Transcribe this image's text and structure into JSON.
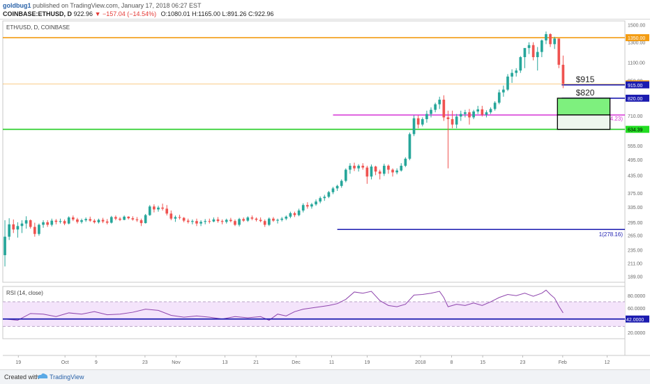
{
  "header": {
    "author": "goldbug1",
    "published_text": "published on TradingView.com, January 17, 2018 06:27 EST",
    "symbol": "COINBASE:ETHUSD, D",
    "last": "922.96",
    "change": "−157.04 (−14.54%)",
    "ohlc": "O:1080.01 H:1165.00 L:891.26 C:922.96"
  },
  "colors": {
    "up": "#26a69a",
    "down": "#ef5350",
    "orange": "#f39c12",
    "blue": "#1b1bb0",
    "magenta": "#d633d6",
    "green": "#22cc22",
    "rsi_line": "#8e44ad",
    "rsi_band": "#f4e4fb"
  },
  "chart_data": [
    {
      "type": "candlestick",
      "title": "ETH/USD, D, COINBASE",
      "x_ticks": [
        "19",
        "Oct",
        "9",
        "23",
        "Nov",
        "13",
        "21",
        "Dec",
        "11",
        "19",
        "2018",
        "8",
        "15",
        "23",
        "Feb",
        "12"
      ],
      "y_ticks": [
        189,
        211,
        235,
        265,
        295,
        335,
        375,
        435,
        495,
        555,
        630,
        710,
        820,
        950,
        1100,
        1300,
        1500
      ],
      "y_scale": "log",
      "ylim": [
        180,
        1550
      ],
      "days": 146,
      "candles": [
        [
          0,
          225,
          300,
          205,
          262
        ],
        [
          1,
          262,
          305,
          255,
          290
        ],
        [
          2,
          290,
          302,
          270,
          278
        ],
        [
          3,
          278,
          295,
          260,
          286
        ],
        [
          4,
          286,
          300,
          270,
          292
        ],
        [
          5,
          292,
          310,
          280,
          300
        ],
        [
          6,
          300,
          302,
          280,
          284
        ],
        [
          7,
          284,
          294,
          262,
          268
        ],
        [
          8,
          268,
          292,
          264,
          289
        ],
        [
          9,
          289,
          300,
          282,
          295
        ],
        [
          10,
          295,
          300,
          284,
          289
        ],
        [
          11,
          289,
          304,
          285,
          299
        ],
        [
          12,
          299,
          303,
          290,
          296
        ],
        [
          13,
          296,
          304,
          292,
          298
        ],
        [
          14,
          298,
          302,
          288,
          292
        ],
        [
          15,
          292,
          310,
          290,
          307
        ],
        [
          16,
          307,
          312,
          298,
          302
        ],
        [
          17,
          302,
          306,
          292,
          296
        ],
        [
          18,
          296,
          304,
          292,
          300
        ],
        [
          19,
          300,
          307,
          296,
          303
        ],
        [
          20,
          303,
          309,
          296,
          299
        ],
        [
          21,
          299,
          303,
          292,
          295
        ],
        [
          22,
          295,
          304,
          292,
          301
        ],
        [
          23,
          301,
          306,
          293,
          297
        ],
        [
          24,
          297,
          303,
          290,
          294
        ],
        [
          25,
          294,
          311,
          292,
          308
        ],
        [
          26,
          308,
          312,
          300,
          304
        ],
        [
          27,
          304,
          308,
          298,
          301
        ],
        [
          28,
          301,
          312,
          300,
          309
        ],
        [
          29,
          309,
          310,
          302,
          305
        ],
        [
          30,
          305,
          310,
          299,
          302
        ],
        [
          31,
          302,
          308,
          296,
          300
        ],
        [
          32,
          300,
          304,
          286,
          293
        ],
        [
          33,
          293,
          316,
          292,
          313
        ],
        [
          34,
          313,
          340,
          311,
          336
        ],
        [
          35,
          336,
          342,
          320,
          328
        ],
        [
          36,
          328,
          338,
          322,
          333
        ],
        [
          37,
          333,
          344,
          325,
          330
        ],
        [
          38,
          330,
          340,
          312,
          317
        ],
        [
          39,
          317,
          325,
          300,
          304
        ],
        [
          40,
          304,
          312,
          296,
          308
        ],
        [
          41,
          308,
          314,
          302,
          306
        ],
        [
          42,
          306,
          308,
          295,
          299
        ],
        [
          43,
          299,
          304,
          292,
          296
        ],
        [
          44,
          296,
          302,
          290,
          298
        ],
        [
          45,
          298,
          304,
          286,
          292
        ],
        [
          46,
          292,
          300,
          286,
          296
        ],
        [
          47,
          296,
          303,
          290,
          298
        ],
        [
          48,
          298,
          304,
          292,
          297
        ],
        [
          49,
          297,
          307,
          295,
          302
        ],
        [
          50,
          302,
          308,
          294,
          298
        ],
        [
          51,
          298,
          302,
          290,
          296
        ],
        [
          52,
          296,
          304,
          292,
          301
        ],
        [
          53,
          301,
          306,
          295,
          298
        ],
        [
          54,
          298,
          302,
          286,
          289
        ],
        [
          55,
          289,
          306,
          285,
          303
        ],
        [
          56,
          303,
          307,
          296,
          299
        ],
        [
          57,
          299,
          310,
          296,
          307
        ],
        [
          58,
          307,
          312,
          300,
          304
        ],
        [
          59,
          304,
          307,
          297,
          301
        ],
        [
          60,
          301,
          307,
          295,
          298
        ],
        [
          61,
          298,
          302,
          284,
          289
        ],
        [
          62,
          289,
          307,
          286,
          304
        ],
        [
          63,
          304,
          308,
          296,
          299
        ],
        [
          64,
          299,
          304,
          292,
          301
        ],
        [
          65,
          301,
          308,
          297,
          304
        ],
        [
          66,
          304,
          312,
          300,
          309
        ],
        [
          67,
          309,
          322,
          305,
          318
        ],
        [
          68,
          318,
          322,
          308,
          313
        ],
        [
          69,
          313,
          330,
          310,
          325
        ],
        [
          70,
          325,
          345,
          320,
          340
        ],
        [
          71,
          340,
          348,
          330,
          336
        ],
        [
          72,
          336,
          346,
          330,
          342
        ],
        [
          73,
          342,
          356,
          338,
          350
        ],
        [
          74,
          350,
          365,
          345,
          360
        ],
        [
          75,
          360,
          370,
          352,
          364
        ],
        [
          76,
          364,
          382,
          360,
          378
        ],
        [
          77,
          378,
          395,
          372,
          390
        ],
        [
          78,
          390,
          402,
          382,
          398
        ],
        [
          79,
          398,
          420,
          392,
          415
        ],
        [
          80,
          415,
          460,
          410,
          455
        ],
        [
          81,
          455,
          480,
          440,
          470
        ],
        [
          82,
          470,
          482,
          450,
          460
        ],
        [
          83,
          460,
          476,
          448,
          470
        ],
        [
          84,
          470,
          480,
          455,
          463
        ],
        [
          85,
          463,
          470,
          405,
          430
        ],
        [
          86,
          430,
          475,
          420,
          467
        ],
        [
          87,
          467,
          470,
          435,
          448
        ],
        [
          88,
          448,
          455,
          420,
          440
        ],
        [
          89,
          440,
          478,
          432,
          470
        ],
        [
          90,
          470,
          475,
          440,
          455
        ],
        [
          91,
          455,
          460,
          430,
          445
        ],
        [
          92,
          445,
          460,
          438,
          452
        ],
        [
          93,
          452,
          480,
          448,
          470
        ],
        [
          94,
          470,
          504,
          465,
          498
        ],
        [
          95,
          498,
          618,
          492,
          610
        ],
        [
          96,
          610,
          712,
          600,
          695
        ],
        [
          97,
          695,
          712,
          640,
          660
        ],
        [
          98,
          660,
          700,
          650,
          690
        ],
        [
          99,
          690,
          740,
          670,
          720
        ],
        [
          100,
          720,
          760,
          700,
          745
        ],
        [
          101,
          745,
          790,
          730,
          780
        ],
        [
          102,
          780,
          830,
          750,
          810
        ],
        [
          103,
          810,
          840,
          680,
          700
        ],
        [
          104,
          700,
          740,
          460,
          690
        ],
        [
          105,
          690,
          740,
          640,
          660
        ],
        [
          106,
          660,
          720,
          640,
          705
        ],
        [
          107,
          705,
          740,
          680,
          720
        ],
        [
          108,
          720,
          745,
          700,
          730
        ],
        [
          109,
          730,
          750,
          660,
          700
        ],
        [
          110,
          700,
          745,
          690,
          735
        ],
        [
          111,
          735,
          770,
          720,
          748
        ],
        [
          112,
          748,
          770,
          705,
          716
        ],
        [
          113,
          716,
          742,
          700,
          730
        ],
        [
          114,
          730,
          760,
          720,
          750
        ],
        [
          115,
          750,
          800,
          740,
          790
        ],
        [
          116,
          790,
          880,
          780,
          860
        ],
        [
          117,
          860,
          910,
          830,
          880
        ],
        [
          118,
          880,
          1000,
          870,
          980
        ],
        [
          119,
          980,
          1040,
          930,
          1010
        ],
        [
          120,
          1010,
          1050,
          980,
          1030
        ],
        [
          121,
          1030,
          1160,
          1010,
          1150
        ],
        [
          122,
          1150,
          1230,
          1050,
          1240
        ],
        [
          123,
          1240,
          1300,
          1180,
          1270
        ],
        [
          124,
          1270,
          1300,
          1120,
          1150
        ],
        [
          125,
          1150,
          1250,
          1030,
          1200
        ],
        [
          126,
          1200,
          1330,
          1150,
          1320
        ],
        [
          127,
          1320,
          1420,
          1280,
          1390
        ],
        [
          128,
          1390,
          1400,
          1250,
          1280
        ],
        [
          129,
          1280,
          1360,
          1230,
          1340
        ],
        [
          130,
          1340,
          1340,
          1050,
          1080
        ],
        [
          131,
          1080,
          1165,
          891,
          923
        ]
      ],
      "levels": [
        {
          "name": "orange-resistance",
          "value": 1350,
          "label": "1350.00",
          "color": "#f39c12"
        },
        {
          "name": "last-price",
          "value": 922.96,
          "label": "922.96",
          "color": "#f39c12"
        },
        {
          "name": "blue-915",
          "value": 915,
          "label": "915.00",
          "color": "#1b1bb0"
        },
        {
          "name": "blue-820",
          "value": 820,
          "label": "820.00",
          "color": "#1b1bb0"
        },
        {
          "name": "green-support",
          "value": 634.39,
          "label": "634.39",
          "color": "#22cc22"
        }
      ],
      "fib": [
        {
          "name": "fib-0618",
          "value": 714.23,
          "label": "0.618(714.23)",
          "color": "#d633d6"
        },
        {
          "name": "fib-1",
          "value": 278.16,
          "label": "1(278.16)",
          "color": "#1b1bb0"
        }
      ],
      "annotations": [
        {
          "text": "$915",
          "value": 915
        },
        {
          "text": "$820",
          "value": 820
        }
      ],
      "zone": {
        "top": 820,
        "mid": 714.23,
        "bottom": 634.39
      }
    },
    {
      "type": "line",
      "title": "RSI (14, close)",
      "y_ticks": [
        20,
        40,
        60,
        80
      ],
      "ylim": [
        10,
        95
      ],
      "band": [
        30,
        70
      ],
      "level": {
        "value": 42,
        "label": "42.0000"
      },
      "y_tick_labels": [
        "20.0000",
        "40.0000",
        "60.0000",
        "80.0000"
      ],
      "rsi": [
        [
          0,
          42
        ],
        [
          3,
          40
        ],
        [
          6,
          51
        ],
        [
          9,
          50
        ],
        [
          12,
          46
        ],
        [
          15,
          52
        ],
        [
          18,
          50
        ],
        [
          21,
          54
        ],
        [
          24,
          49
        ],
        [
          27,
          50
        ],
        [
          30,
          53
        ],
        [
          33,
          58
        ],
        [
          36,
          56
        ],
        [
          39,
          48
        ],
        [
          42,
          45
        ],
        [
          45,
          47
        ],
        [
          48,
          45
        ],
        [
          51,
          42
        ],
        [
          54,
          46
        ],
        [
          57,
          44
        ],
        [
          60,
          46
        ],
        [
          62,
          40
        ],
        [
          64,
          50
        ],
        [
          66,
          47
        ],
        [
          68,
          54
        ],
        [
          70,
          58
        ],
        [
          72,
          60
        ],
        [
          74,
          62
        ],
        [
          76,
          64
        ],
        [
          78,
          67
        ],
        [
          80,
          74
        ],
        [
          82,
          86
        ],
        [
          84,
          84
        ],
        [
          86,
          87
        ],
        [
          88,
          72
        ],
        [
          90,
          64
        ],
        [
          92,
          62
        ],
        [
          94,
          66
        ],
        [
          96,
          81
        ],
        [
          98,
          82
        ],
        [
          100,
          84
        ],
        [
          102,
          87
        ],
        [
          103,
          77
        ],
        [
          104,
          62
        ],
        [
          106,
          66
        ],
        [
          108,
          64
        ],
        [
          110,
          68
        ],
        [
          112,
          64
        ],
        [
          114,
          70
        ],
        [
          116,
          77
        ],
        [
          118,
          82
        ],
        [
          120,
          80
        ],
        [
          122,
          84
        ],
        [
          124,
          79
        ],
        [
          126,
          84
        ],
        [
          127,
          89
        ],
        [
          128,
          82
        ],
        [
          129,
          76
        ],
        [
          130,
          63
        ],
        [
          131,
          52
        ]
      ]
    }
  ]
}
